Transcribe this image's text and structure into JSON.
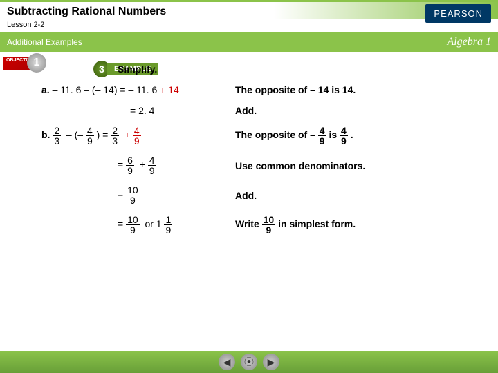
{
  "header": {
    "title": "Subtracting Rational Numbers",
    "lesson": "Lesson 2-2",
    "additional": "Additional Examples",
    "course": "Algebra 1",
    "publisher": "PEARSON"
  },
  "objective": {
    "label": "OBJECTIVE",
    "number": "1"
  },
  "example": {
    "number": "3",
    "label": "EXAMPLE",
    "instruction": "Simplify."
  },
  "problemA": {
    "label": "a.",
    "expr": "– 11. 6 – (– 14)",
    "step1_eq": "= – 11. 6",
    "step1_plus": "+ 14",
    "step1_explain": "The opposite of – 14 is 14.",
    "step2_eq": "= 2. 4",
    "step2_explain": "Add."
  },
  "problemB": {
    "label": "b.",
    "frac_a_num": "2",
    "frac_a_den": "3",
    "frac_b_num": "4",
    "frac_b_den": "9",
    "step1_explain_pre": "The opposite of –",
    "step1_explain_mid": "is",
    "step1_explain_post": ".",
    "step2_num1": "6",
    "step2_den1": "9",
    "step2_num2": "4",
    "step2_den2": "9",
    "step2_explain": "Use common denominators.",
    "step3_num": "10",
    "step3_den": "9",
    "step3_explain": "Add.",
    "step4_or": "or 1",
    "step4_num": "1",
    "step4_den": "9",
    "step4_explain_pre": "Write",
    "step4_explain_post": "in simplest form."
  },
  "colors": {
    "green": "#8BC34A",
    "darkgreen": "#689F38",
    "red": "#c00",
    "navy": "#003865"
  }
}
